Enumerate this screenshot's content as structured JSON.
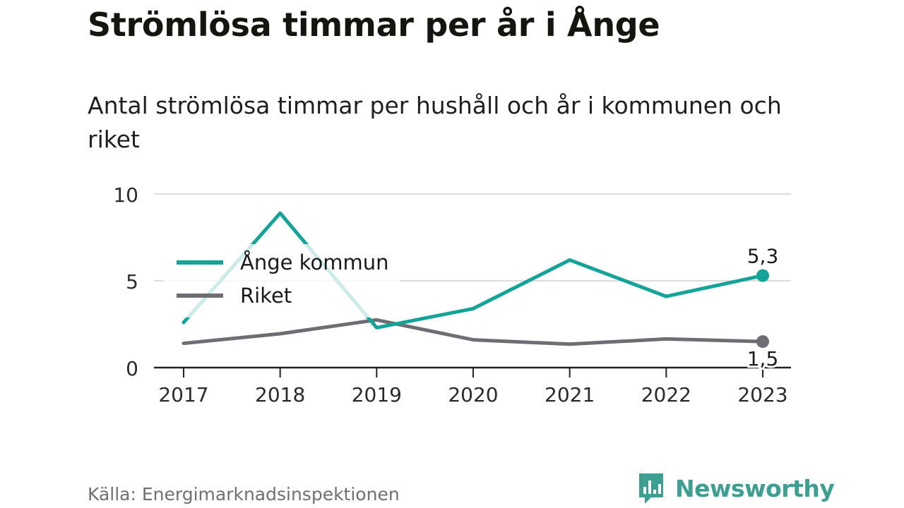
{
  "title": "Strömlösa timmar per år i Ånge",
  "subtitle": "Antal strömlösa timmar per hushåll och år i kommunen och riket",
  "source": "Källa: Energimarknadsinspektionen",
  "brand": {
    "name": "Newsworthy",
    "icon": "bar-chart-icon",
    "color": "#3d9f92"
  },
  "chart_data": {
    "type": "line",
    "x": [
      "2017",
      "2018",
      "2019",
      "2020",
      "2021",
      "2022",
      "2023"
    ],
    "ylim": [
      0,
      10
    ],
    "yticks": [
      "0",
      "5",
      "10"
    ],
    "grid": true,
    "legend_position": "left",
    "series": [
      {
        "name": "Ånge kommun",
        "color": "#13a398",
        "values": [
          2.6,
          8.9,
          2.3,
          3.4,
          6.2,
          4.1,
          5.3
        ],
        "end_label": "5,3"
      },
      {
        "name": "Riket",
        "color": "#6e6d74",
        "values": [
          1.4,
          1.95,
          2.75,
          1.6,
          1.35,
          1.65,
          1.5
        ],
        "end_label": "1,5"
      }
    ]
  }
}
